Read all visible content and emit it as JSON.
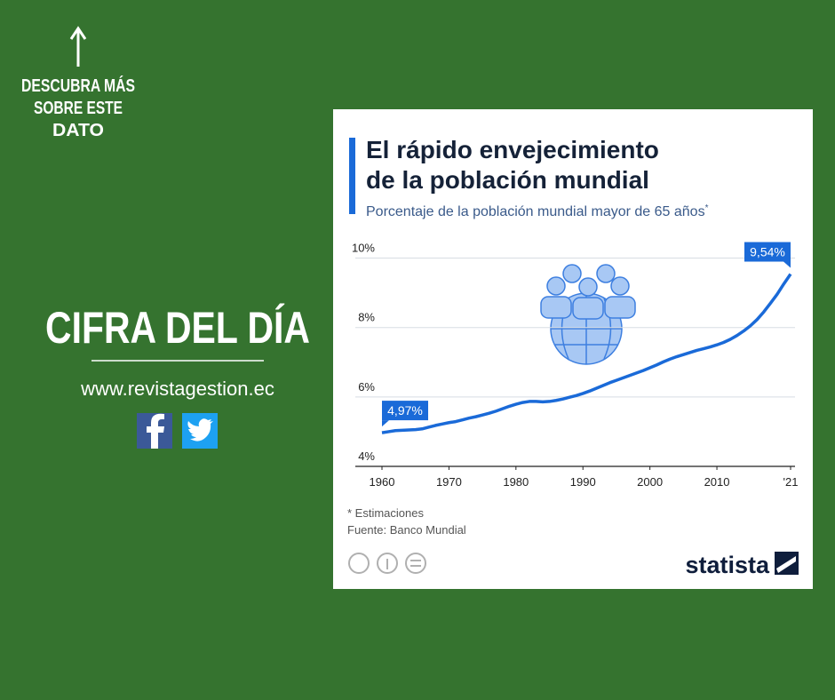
{
  "promo": {
    "cta_lines": [
      "DESCUBRA MÁS",
      "SOBRE ESTE",
      "DATO"
    ],
    "headline": "CIFRA DEL DÍA",
    "website": "www.revistagestion.ec"
  },
  "chart_data": {
    "type": "line",
    "title": [
      "El rápido envejecimiento",
      "de la población mundial"
    ],
    "subtitle": "Porcentaje de la población mundial mayor de 65 años",
    "subtitle_marker": "*",
    "footnote": "* Estimaciones",
    "source": "Fuente: Banco Mundial",
    "brand": "statista",
    "color": "#1a6ad8",
    "grid": true,
    "x": [
      1960,
      1961,
      1962,
      1963,
      1964,
      1965,
      1966,
      1967,
      1968,
      1969,
      1970,
      1971,
      1972,
      1973,
      1974,
      1975,
      1976,
      1977,
      1978,
      1979,
      1980,
      1981,
      1982,
      1983,
      1984,
      1985,
      1986,
      1987,
      1988,
      1989,
      1990,
      1991,
      1992,
      1993,
      1994,
      1995,
      1996,
      1997,
      1998,
      1999,
      2000,
      2001,
      2002,
      2003,
      2004,
      2005,
      2006,
      2007,
      2008,
      2009,
      2010,
      2011,
      2012,
      2013,
      2014,
      2015,
      2016,
      2017,
      2018,
      2019,
      2020,
      2021
    ],
    "values": [
      4.97,
      5.0,
      5.03,
      5.04,
      5.05,
      5.06,
      5.08,
      5.13,
      5.18,
      5.22,
      5.26,
      5.29,
      5.34,
      5.39,
      5.43,
      5.48,
      5.53,
      5.59,
      5.66,
      5.73,
      5.79,
      5.84,
      5.87,
      5.87,
      5.86,
      5.87,
      5.9,
      5.94,
      5.99,
      6.04,
      6.1,
      6.17,
      6.25,
      6.33,
      6.41,
      6.48,
      6.55,
      6.62,
      6.69,
      6.76,
      6.84,
      6.92,
      7.01,
      7.09,
      7.16,
      7.22,
      7.28,
      7.34,
      7.39,
      7.44,
      7.5,
      7.57,
      7.66,
      7.77,
      7.9,
      8.05,
      8.23,
      8.45,
      8.7,
      8.96,
      9.26,
      9.54
    ],
    "value_labels": [
      "4,97%",
      null,
      null,
      null,
      null,
      null,
      null,
      null,
      null,
      null,
      null,
      null,
      null,
      null,
      null,
      null,
      null,
      null,
      null,
      null,
      null,
      null,
      null,
      null,
      null,
      null,
      null,
      null,
      null,
      null,
      null,
      null,
      null,
      null,
      null,
      null,
      null,
      null,
      null,
      null,
      null,
      null,
      null,
      null,
      null,
      null,
      null,
      null,
      null,
      null,
      null,
      null,
      null,
      null,
      null,
      null,
      null,
      null,
      null,
      null,
      null,
      "9,54%"
    ],
    "xlim": [
      1960,
      2021
    ],
    "xticks": [
      1960,
      1970,
      1980,
      1990,
      2000,
      2010,
      {
        "value": 2021,
        "label": "'21"
      }
    ],
    "ylim": [
      4,
      10.5
    ],
    "yticks": [
      {
        "value": 4,
        "label": "4%"
      },
      {
        "value": 6,
        "label": "6%"
      },
      {
        "value": 8,
        "label": "8%"
      },
      {
        "value": 10,
        "label": "10%"
      }
    ]
  }
}
